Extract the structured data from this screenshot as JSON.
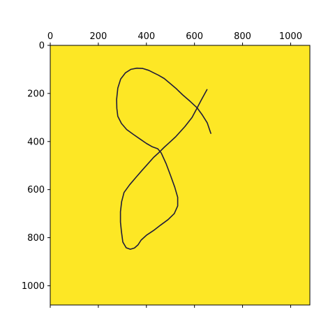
{
  "chart_data": {
    "type": "heatmap",
    "title": "",
    "xlabel": "",
    "ylabel": "",
    "xlim": [
      0,
      1080
    ],
    "ylim": [
      1080,
      0
    ],
    "x_axis_position": "top",
    "y_axis_inverted": true,
    "grid": false,
    "x_ticks": [
      0,
      200,
      400,
      600,
      800,
      1000
    ],
    "y_ticks": [
      0,
      200,
      400,
      600,
      800,
      1000
    ],
    "x_tick_labels": [
      "0",
      "200",
      "400",
      "600",
      "800",
      "1000"
    ],
    "y_tick_labels": [
      "0",
      "200",
      "400",
      "600",
      "800",
      "1000"
    ],
    "colors": {
      "background": "#fde725",
      "stroke": "#1f1b3a",
      "stroke_highlight": "#21918c",
      "axes": "#000000"
    },
    "stroke_points": [
      [
        652,
        184
      ],
      [
        628,
        228
      ],
      [
        608,
        266
      ],
      [
        590,
        300
      ],
      [
        560,
        338
      ],
      [
        522,
        380
      ],
      [
        496,
        404
      ],
      [
        474,
        424
      ],
      [
        452,
        446
      ],
      [
        430,
        466
      ],
      [
        405,
        494
      ],
      [
        380,
        522
      ],
      [
        356,
        550
      ],
      [
        330,
        580
      ],
      [
        307,
        612
      ],
      [
        297,
        650
      ],
      [
        292,
        692
      ],
      [
        292,
        735
      ],
      [
        296,
        775
      ],
      [
        302,
        818
      ],
      [
        316,
        842
      ],
      [
        333,
        848
      ],
      [
        350,
        843
      ],
      [
        365,
        830
      ],
      [
        378,
        810
      ],
      [
        400,
        790
      ],
      [
        430,
        770
      ],
      [
        460,
        747
      ],
      [
        490,
        725
      ],
      [
        516,
        700
      ],
      [
        530,
        668
      ],
      [
        530,
        632
      ],
      [
        518,
        590
      ],
      [
        500,
        540
      ],
      [
        482,
        492
      ],
      [
        462,
        448
      ],
      [
        447,
        430
      ],
      [
        425,
        422
      ],
      [
        400,
        408
      ],
      [
        374,
        390
      ],
      [
        345,
        370
      ],
      [
        318,
        350
      ],
      [
        296,
        325
      ],
      [
        281,
        295
      ],
      [
        277,
        262
      ],
      [
        276,
        225
      ],
      [
        281,
        178
      ],
      [
        293,
        140
      ],
      [
        313,
        114
      ],
      [
        335,
        100
      ],
      [
        360,
        95
      ],
      [
        385,
        96
      ],
      [
        410,
        104
      ],
      [
        430,
        114
      ],
      [
        450,
        124
      ],
      [
        474,
        138
      ],
      [
        498,
        158
      ],
      [
        524,
        180
      ],
      [
        551,
        206
      ],
      [
        581,
        232
      ],
      [
        611,
        260
      ],
      [
        633,
        290
      ],
      [
        653,
        322
      ],
      [
        668,
        366
      ]
    ]
  }
}
